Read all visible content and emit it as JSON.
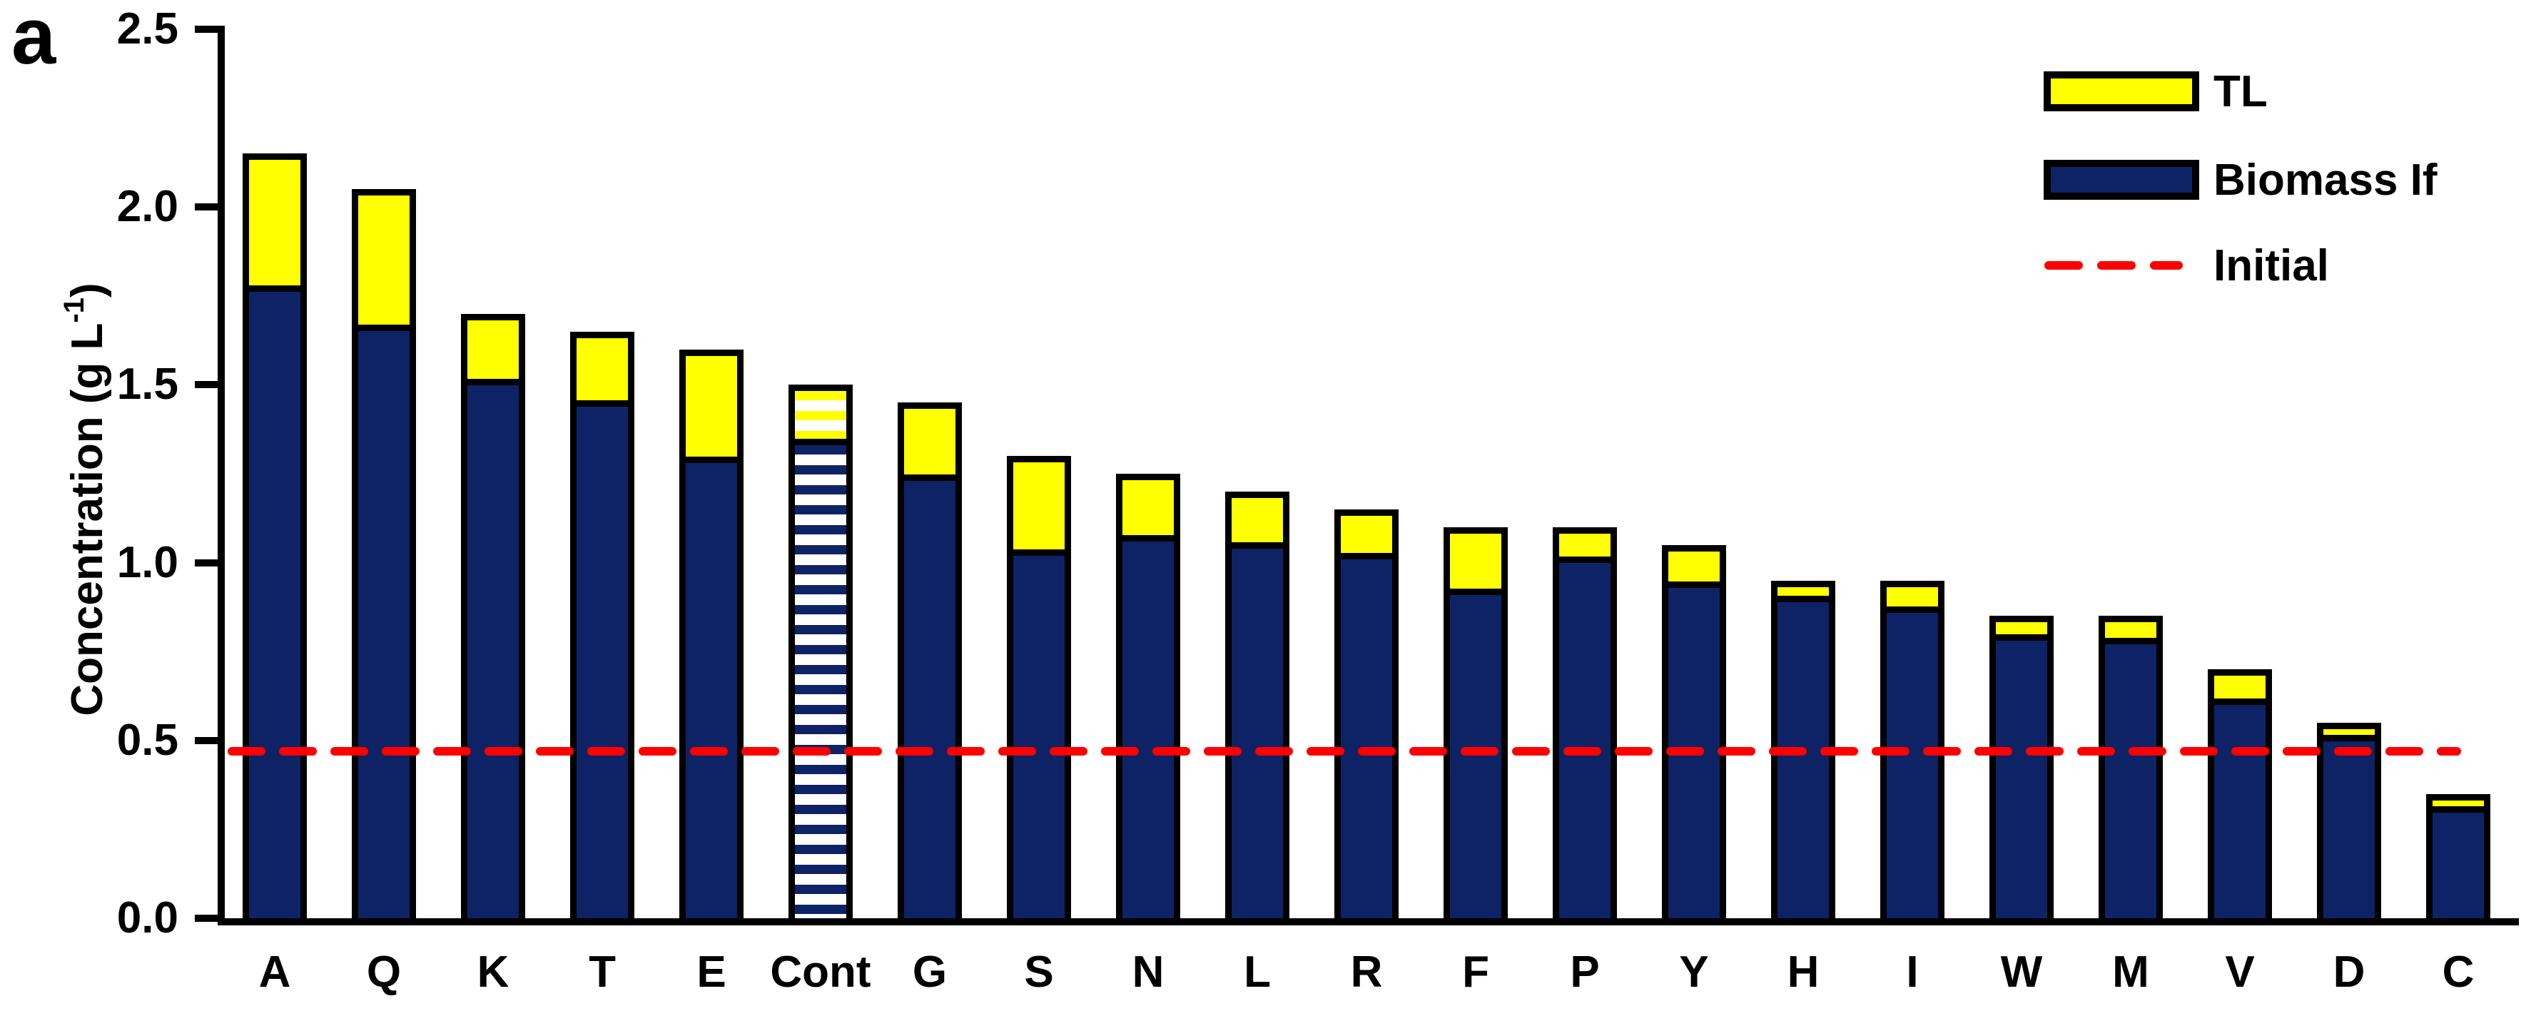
{
  "panel_label": "a",
  "y_axis": {
    "title_prefix": "Concentration (g L",
    "title_sup": "-1",
    "title_suffix": ")",
    "tick_labels": [
      "0.0",
      "0.5",
      "1.0",
      "1.5",
      "2.0",
      "2.5"
    ],
    "tick_values": [
      0.0,
      0.5,
      1.0,
      1.5,
      2.0,
      2.5
    ]
  },
  "legend": {
    "items": [
      {
        "label": "TL",
        "swatch": "tl-swatch",
        "color": "#ffff00"
      },
      {
        "label": "Biomass If",
        "swatch": "biomass-swatch",
        "color": "#0d2365"
      },
      {
        "label": "Initial",
        "swatch": "initial-dashed-line",
        "color": "#ff0000"
      }
    ]
  },
  "colors": {
    "biomass_navy": "#0d2365",
    "tl_yellow": "#ffff00",
    "initial_red": "#ff0000",
    "axis_black": "#000000",
    "hatch_background": "#ffffff"
  },
  "chart_data": {
    "type": "bar",
    "stacked": true,
    "title": "",
    "xlabel": "",
    "ylabel": "Concentration (g L-1)",
    "ylim": [
      0,
      2.5
    ],
    "yticks": [
      0.0,
      0.5,
      1.0,
      1.5,
      2.0,
      2.5
    ],
    "grid": false,
    "legend_position": "top-right",
    "categories": [
      "A",
      "Q",
      "K",
      "T",
      "E",
      "Cont",
      "G",
      "S",
      "N",
      "L",
      "R",
      "F",
      "P",
      "Y",
      "H",
      "I",
      "W",
      "M",
      "V",
      "D",
      "C"
    ],
    "hatched_category": "Cont",
    "series": [
      {
        "name": "Biomass If",
        "color": "#0d2365",
        "values": [
          1.76,
          1.65,
          1.5,
          1.44,
          1.28,
          1.33,
          1.23,
          1.02,
          1.06,
          1.04,
          1.01,
          0.91,
          1.0,
          0.93,
          0.89,
          0.86,
          0.78,
          0.77,
          0.6,
          0.5,
          0.33
        ]
      },
      {
        "name": "TL",
        "color": "#ffff00",
        "values": [
          0.39,
          0.4,
          0.2,
          0.21,
          0.32,
          0.17,
          0.22,
          0.28,
          0.19,
          0.16,
          0.14,
          0.19,
          0.1,
          0.12,
          0.06,
          0.09,
          0.07,
          0.08,
          0.1,
          0.05,
          0.02
        ]
      }
    ],
    "totals": [
      2.15,
      2.05,
      1.7,
      1.65,
      1.6,
      1.5,
      1.45,
      1.3,
      1.25,
      1.2,
      1.15,
      1.1,
      1.1,
      1.05,
      0.95,
      0.95,
      0.85,
      0.85,
      0.7,
      0.55,
      0.35
    ],
    "reference_line": {
      "name": "Initial",
      "value": 0.47,
      "color": "#ff0000",
      "style": "dashed"
    }
  }
}
